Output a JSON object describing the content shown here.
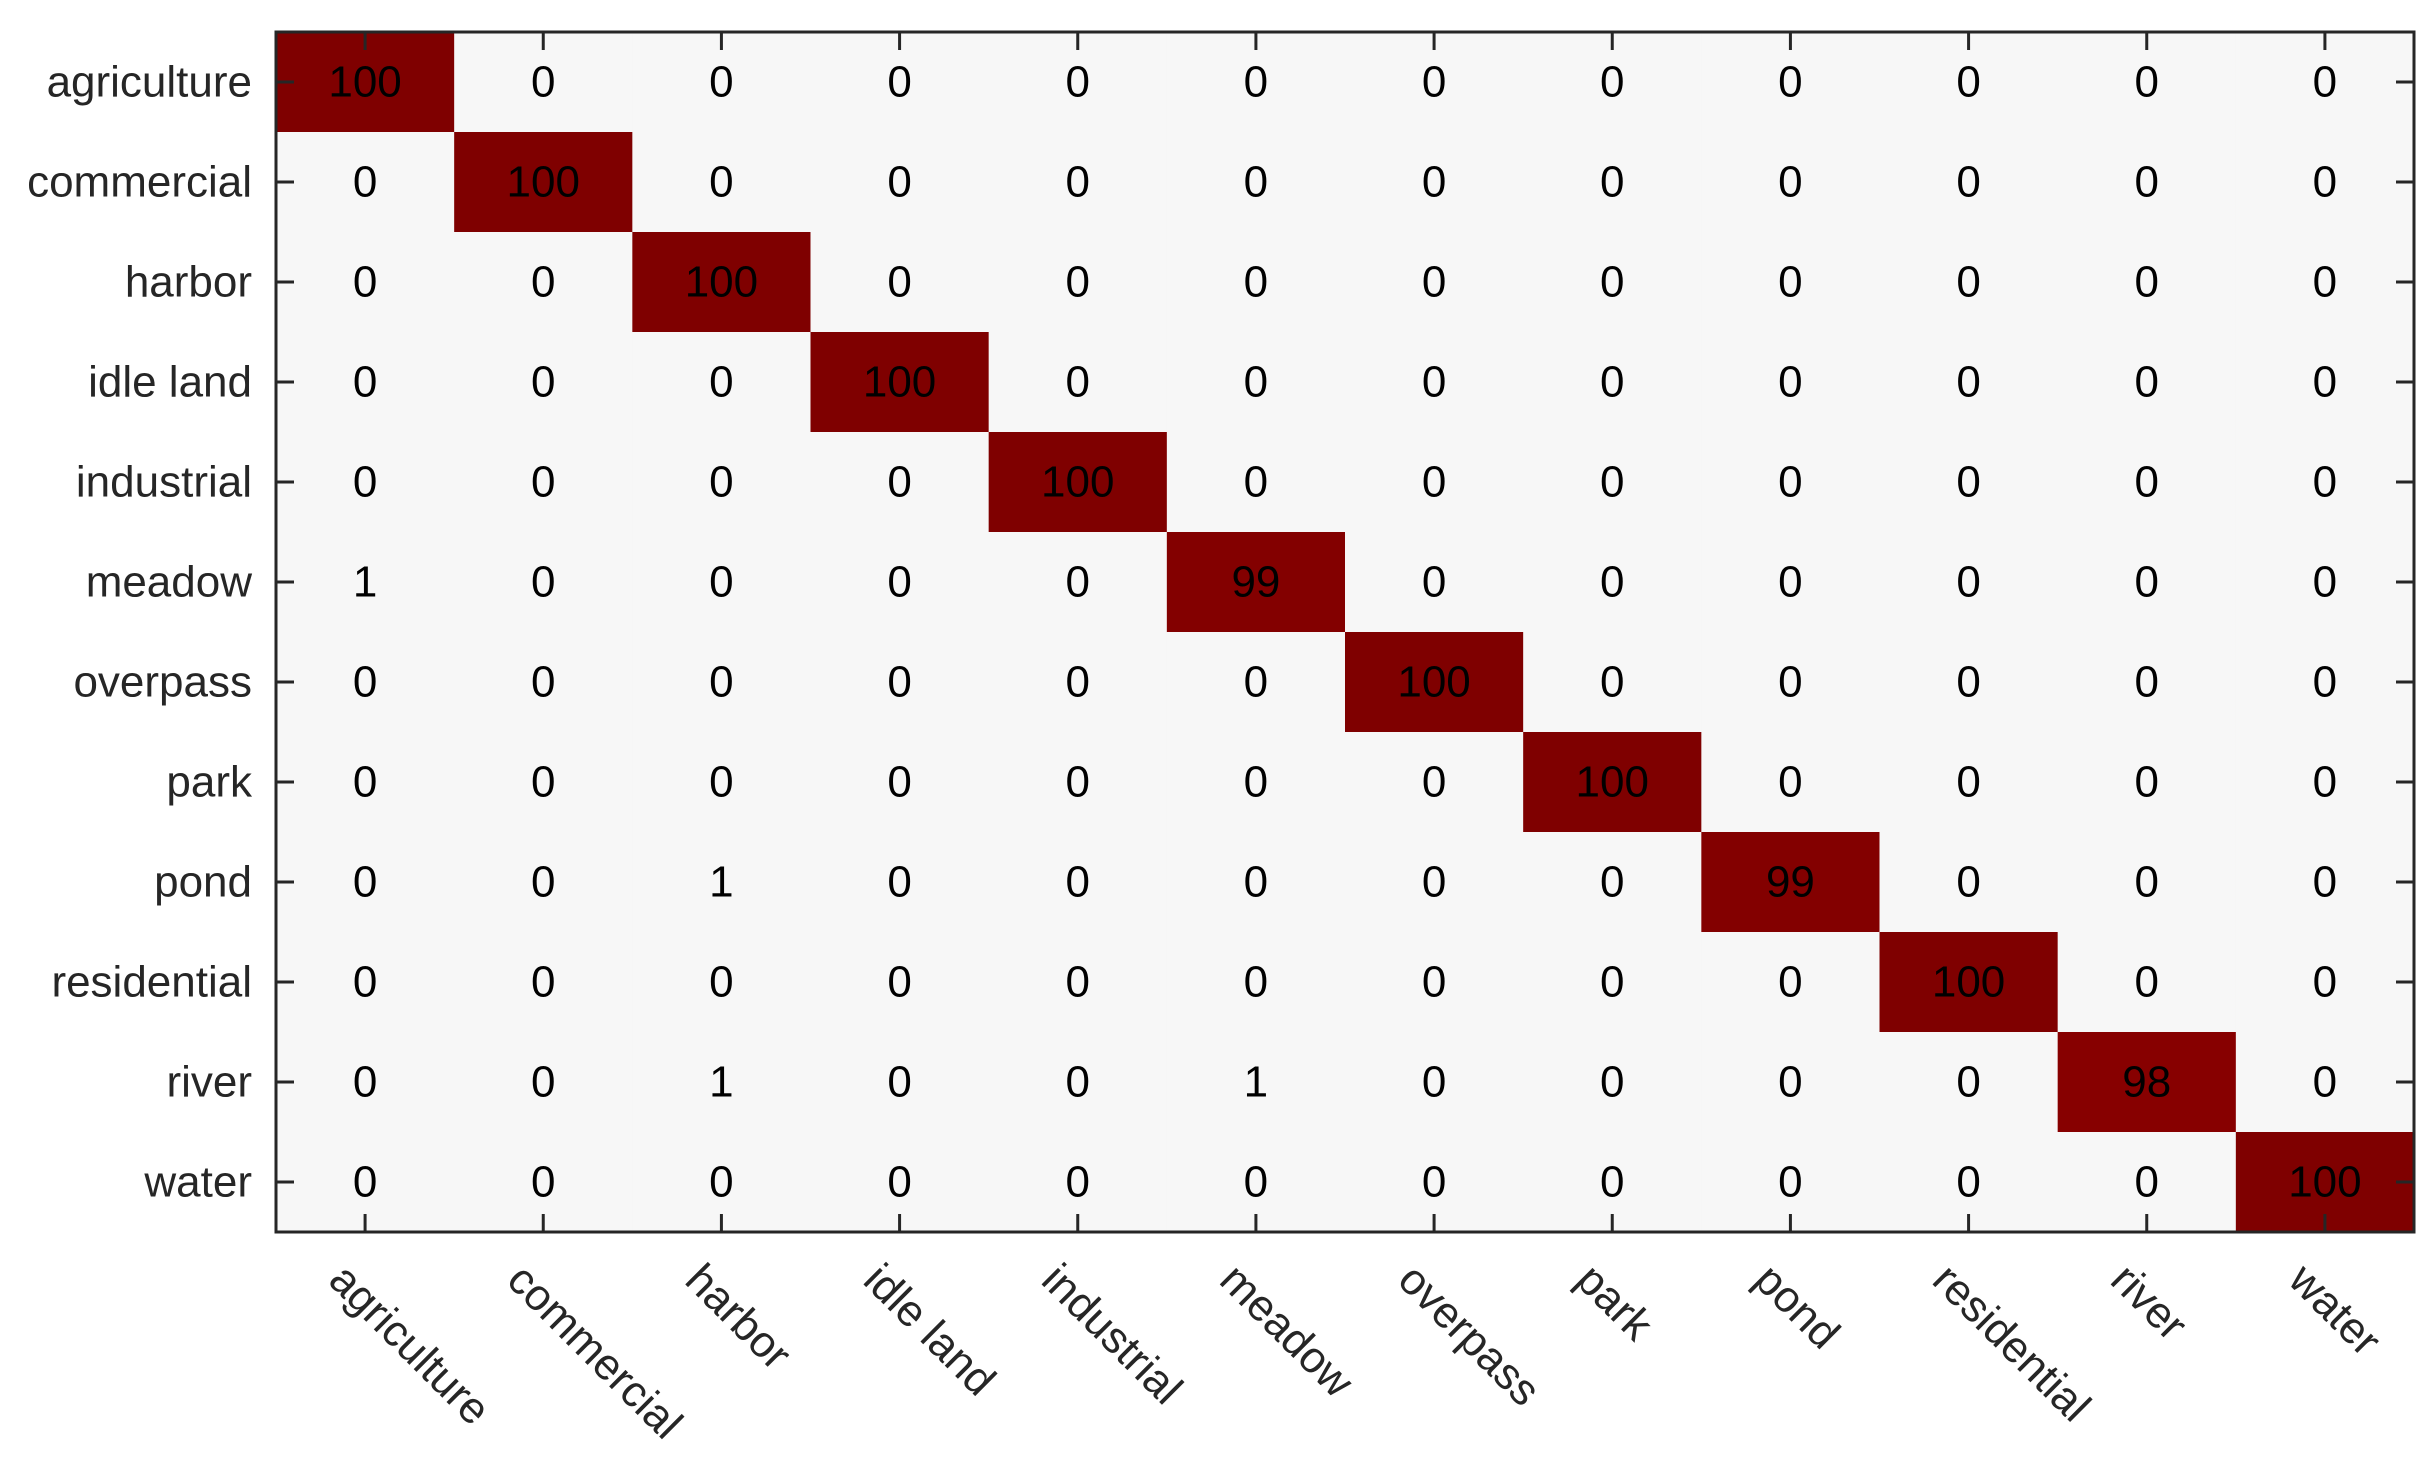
{
  "chart_data": {
    "type": "heatmap",
    "title": "",
    "xlabel": "",
    "ylabel": "",
    "row_labels": [
      "agriculture",
      "commercial",
      "harbor",
      "idle land",
      "industrial",
      "meadow",
      "overpass",
      "park",
      "pond",
      "residential",
      "river",
      "water"
    ],
    "col_labels": [
      "agriculture",
      "commercial",
      "harbor",
      "idle land",
      "industrial",
      "meadow",
      "overpass",
      "park",
      "pond",
      "residential",
      "river",
      "water"
    ],
    "values": [
      [
        100,
        0,
        0,
        0,
        0,
        0,
        0,
        0,
        0,
        0,
        0,
        0
      ],
      [
        0,
        100,
        0,
        0,
        0,
        0,
        0,
        0,
        0,
        0,
        0,
        0
      ],
      [
        0,
        0,
        100,
        0,
        0,
        0,
        0,
        0,
        0,
        0,
        0,
        0
      ],
      [
        0,
        0,
        0,
        100,
        0,
        0,
        0,
        0,
        0,
        0,
        0,
        0
      ],
      [
        0,
        0,
        0,
        0,
        100,
        0,
        0,
        0,
        0,
        0,
        0,
        0
      ],
      [
        1,
        0,
        0,
        0,
        0,
        99,
        0,
        0,
        0,
        0,
        0,
        0
      ],
      [
        0,
        0,
        0,
        0,
        0,
        0,
        100,
        0,
        0,
        0,
        0,
        0
      ],
      [
        0,
        0,
        0,
        0,
        0,
        0,
        0,
        100,
        0,
        0,
        0,
        0
      ],
      [
        0,
        0,
        1,
        0,
        0,
        0,
        0,
        0,
        99,
        0,
        0,
        0
      ],
      [
        0,
        0,
        0,
        0,
        0,
        0,
        0,
        0,
        0,
        100,
        0,
        0
      ],
      [
        0,
        0,
        1,
        0,
        0,
        1,
        0,
        0,
        0,
        0,
        98,
        0
      ],
      [
        0,
        0,
        0,
        0,
        0,
        0,
        0,
        0,
        0,
        0,
        0,
        100
      ]
    ],
    "value_range": [
      0,
      100
    ],
    "colors": {
      "low": "#f7f7f7",
      "high": "#7f0000",
      "axis": "#262626",
      "text": "#000000"
    },
    "grid": false,
    "x_tick_rotation_deg": 45
  }
}
